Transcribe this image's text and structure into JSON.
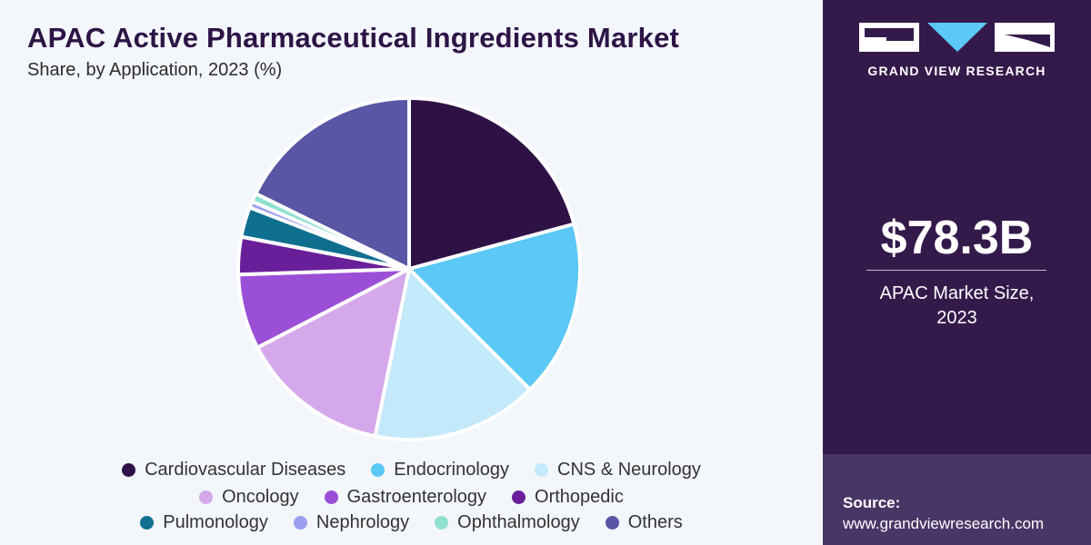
{
  "header": {
    "title": "APAC Active Pharmaceutical Ingredients Market",
    "subtitle": "Share, by Application, 2023 (%)"
  },
  "chart_data": {
    "type": "pie",
    "title": "APAC Active Pharmaceutical Ingredients Market",
    "subtitle": "Share, by Application, 2023 (%)",
    "legend_position": "bottom",
    "slices": [
      {
        "label": "Cardiovascular Diseases",
        "value": 20.5,
        "color": "#2f1245"
      },
      {
        "label": "Endocrinology",
        "value": 16.5,
        "color": "#5bc8f5"
      },
      {
        "label": "CNS & Neurology",
        "value": 15.5,
        "color": "#c3e9fb"
      },
      {
        "label": "Oncology",
        "value": 14.0,
        "color": "#d5a8ec"
      },
      {
        "label": "Gastroenterology",
        "value": 7.0,
        "color": "#9b4fd6"
      },
      {
        "label": "Orthopedic",
        "value": 3.5,
        "color": "#6a1f9a"
      },
      {
        "label": "Pulmonology",
        "value": 2.8,
        "color": "#0f6f8f"
      },
      {
        "label": "Nephrology",
        "value": 0.6,
        "color": "#9c9ff0"
      },
      {
        "label": "Ophthalmology",
        "value": 0.8,
        "color": "#8fe0cf"
      },
      {
        "label": "Others",
        "value": 17.5,
        "color": "#5956a5"
      }
    ]
  },
  "legend": {
    "rows": [
      [
        0,
        1,
        2
      ],
      [
        3,
        4,
        5
      ],
      [
        6,
        7,
        8,
        9
      ]
    ]
  },
  "sidebar": {
    "brand": "GRAND VIEW RESEARCH",
    "market_value": "$78.3B",
    "market_label_line1": "APAC Market Size,",
    "market_label_line2": "2023",
    "source_label": "Source:",
    "source_url": "www.grandviewresearch.com"
  },
  "colors": {
    "sidebar_bg": "#341a4b",
    "title": "#2d1446",
    "page_bg": "#f3f6fb"
  }
}
